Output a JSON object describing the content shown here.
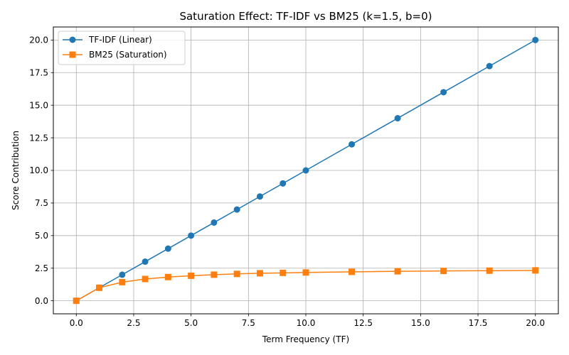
{
  "chart_data": {
    "type": "line",
    "title": "Saturation Effect: TF-IDF vs BM25 (k=1.5, b=0)",
    "xlabel": "Term Frequency (TF)",
    "ylabel": "Score Contribution",
    "xlim": [
      -1,
      21
    ],
    "ylim": [
      -1,
      21
    ],
    "xticks": [
      0.0,
      2.5,
      5.0,
      7.5,
      10.0,
      12.5,
      15.0,
      17.5,
      20.0
    ],
    "xtick_labels": [
      "0.0",
      "2.5",
      "5.0",
      "7.5",
      "10.0",
      "12.5",
      "15.0",
      "17.5",
      "20.0"
    ],
    "yticks": [
      0.0,
      2.5,
      5.0,
      7.5,
      10.0,
      12.5,
      15.0,
      17.5,
      20.0
    ],
    "ytick_labels": [
      "0.0",
      "2.5",
      "5.0",
      "7.5",
      "10.0",
      "12.5",
      "15.0",
      "17.5",
      "20.0"
    ],
    "grid": true,
    "legend_position": "top-left",
    "x": [
      0,
      1,
      2,
      3,
      4,
      5,
      6,
      7,
      8,
      9,
      10,
      12,
      14,
      16,
      18,
      20
    ],
    "series": [
      {
        "name": "TF-IDF (Linear)",
        "color": "#1f77b4",
        "marker": "circle",
        "values": [
          0,
          1,
          2,
          3,
          4,
          5,
          6,
          7,
          8,
          9,
          10,
          12,
          14,
          16,
          18,
          20
        ]
      },
      {
        "name": "BM25 (Saturation)",
        "color": "#ff7f0e",
        "marker": "square",
        "values": [
          0,
          1.0,
          1.43,
          1.67,
          1.82,
          1.92,
          2.0,
          2.06,
          2.11,
          2.14,
          2.17,
          2.22,
          2.26,
          2.29,
          2.31,
          2.33
        ]
      }
    ]
  }
}
